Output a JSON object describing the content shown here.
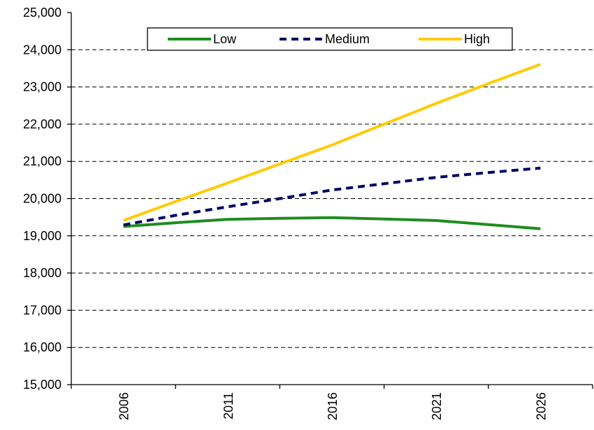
{
  "chart_data": {
    "type": "line",
    "categories": [
      "2006",
      "2011",
      "2016",
      "2021",
      "2026"
    ],
    "x": [
      2006,
      2008.5,
      2011,
      2013.5,
      2016,
      2018.5,
      2021,
      2023.5,
      2026
    ],
    "series": [
      {
        "name": "Low",
        "color": "#1e8c1e",
        "dash": "solid",
        "values": [
          19250,
          19350,
          19440,
          19470,
          19490,
          19450,
          19410,
          19300,
          19190
        ]
      },
      {
        "name": "Medium",
        "color": "#000066",
        "dash": "dashed",
        "values": [
          19290,
          19550,
          19780,
          20000,
          20230,
          20400,
          20570,
          20700,
          20820
        ]
      },
      {
        "name": "High",
        "color": "#ffcc00",
        "dash": "solid",
        "values": [
          19410,
          19920,
          20420,
          20930,
          21440,
          22000,
          22560,
          23090,
          23610
        ]
      }
    ],
    "yticks": [
      "15,000",
      "16,000",
      "17,000",
      "18,000",
      "19,000",
      "20,000",
      "21,000",
      "22,000",
      "23,000",
      "24,000",
      "25,000"
    ],
    "ylim": [
      15000,
      25000
    ],
    "xlim": [
      2003.5,
      2028.5
    ],
    "grid": "horizontal dashed",
    "legend": "top-center"
  }
}
